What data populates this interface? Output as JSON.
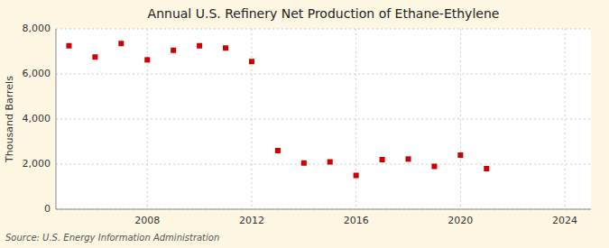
{
  "chart_data": {
    "type": "scatter",
    "title": "Annual U.S. Refinery Net Production of Ethane-Ethylene",
    "ylabel": "Thousand Barrels",
    "annotation": "Source: U.S. Energy Information Administration",
    "x": [
      2005,
      2006,
      2007,
      2008,
      2009,
      2010,
      2011,
      2012,
      2013,
      2014,
      2015,
      2016,
      2017,
      2018,
      2019,
      2020,
      2021
    ],
    "values": [
      7250,
      6750,
      7350,
      6625,
      7050,
      7250,
      7150,
      6550,
      2600,
      2050,
      2100,
      1500,
      2200,
      2225,
      1900,
      2400,
      1800
    ],
    "color": "#cc0000",
    "marker": "square",
    "grid": true,
    "xlim": [
      2004.5,
      2025
    ],
    "xticks": [
      2008,
      2012,
      2016,
      2020,
      2024
    ],
    "ylim": [
      0,
      8000
    ],
    "yticks": [
      0,
      {
        "value": 2000,
        "label": "2,000"
      },
      {
        "value": 4000,
        "label": "4,000"
      },
      {
        "value": 6000,
        "label": "6,000"
      },
      {
        "value": 8000,
        "label": "8,000"
      }
    ]
  }
}
